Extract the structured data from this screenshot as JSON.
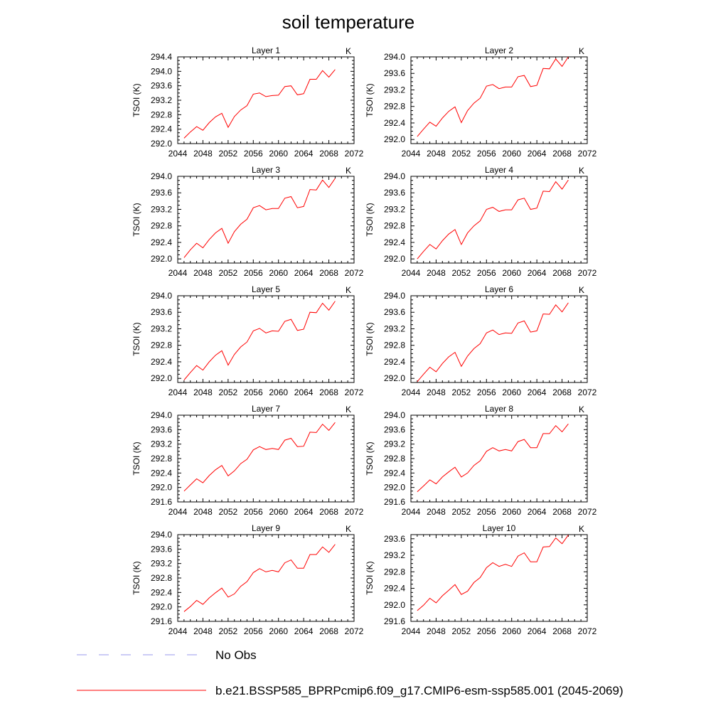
{
  "title": "soil temperature",
  "chart_data": {
    "type": "line",
    "x": [
      2045,
      2046,
      2047,
      2048,
      2049,
      2050,
      2051,
      2052,
      2053,
      2054,
      2055,
      2056,
      2057,
      2058,
      2059,
      2060,
      2061,
      2062,
      2063,
      2064,
      2065,
      2066,
      2067,
      2068,
      2069
    ],
    "xlim": [
      2044,
      2072
    ],
    "xticks": [
      2044,
      2048,
      2052,
      2056,
      2060,
      2064,
      2068,
      2072
    ],
    "ylabel": "TSOI  (K)",
    "units_label": "K",
    "grid": false,
    "panels": [
      {
        "title": "Layer 1",
        "ylim": [
          292.0,
          294.4
        ],
        "yticks": [
          "292.0",
          "292.4",
          "292.8",
          "293.2",
          "293.6",
          "294.0",
          "294.4"
        ],
        "series": [
          {
            "name": "b.e21.BSSP585_BPRPcmip6.f09_g17.CMIP6-esm-ssp585.001 (2045-2069)",
            "values": [
              292.15,
              292.32,
              292.47,
              292.37,
              292.58,
              292.74,
              292.84,
              292.45,
              292.75,
              292.93,
              293.05,
              293.37,
              293.4,
              293.3,
              293.33,
              293.34,
              293.58,
              293.6,
              293.35,
              293.38,
              293.78,
              293.78,
              294.02,
              293.84,
              294.05
            ]
          }
        ]
      },
      {
        "title": "Layer 2",
        "ylim": [
          291.9,
          294.0
        ],
        "yticks": [
          "292.0",
          "292.4",
          "292.8",
          "293.2",
          "293.6",
          "294.0"
        ],
        "series": [
          {
            "name": "b.e21.BSSP585_BPRPcmip6.f09_g17.CMIP6-esm-ssp585.001 (2045-2069)",
            "values": [
              292.07,
              292.25,
              292.42,
              292.32,
              292.52,
              292.68,
              292.79,
              292.41,
              292.7,
              292.88,
              293.0,
              293.29,
              293.33,
              293.23,
              293.27,
              293.27,
              293.52,
              293.55,
              293.28,
              293.31,
              293.72,
              293.71,
              293.95,
              293.77,
              294.0
            ]
          }
        ]
      },
      {
        "title": "Layer 3",
        "ylim": [
          291.9,
          294.0
        ],
        "yticks": [
          "292.0",
          "292.4",
          "292.8",
          "293.2",
          "293.6",
          "294.0"
        ],
        "series": [
          {
            "name": "b.e21.BSSP585_BPRPcmip6.f09_g17.CMIP6-esm-ssp585.001 (2045-2069)",
            "values": [
              292.03,
              292.22,
              292.38,
              292.27,
              292.47,
              292.63,
              292.74,
              292.38,
              292.66,
              292.84,
              292.96,
              293.24,
              293.29,
              293.19,
              293.22,
              293.22,
              293.47,
              293.51,
              293.24,
              293.27,
              293.68,
              293.67,
              293.91,
              293.73,
              293.95
            ]
          }
        ]
      },
      {
        "title": "Layer 4",
        "ylim": [
          291.9,
          294.0
        ],
        "yticks": [
          "292.0",
          "292.4",
          "292.8",
          "293.2",
          "293.6",
          "294.0"
        ],
        "series": [
          {
            "name": "b.e21.BSSP585_BPRPcmip6.f09_g17.CMIP6-esm-ssp585.001 (2045-2069)",
            "values": [
              292.0,
              292.18,
              292.35,
              292.24,
              292.44,
              292.6,
              292.71,
              292.35,
              292.63,
              292.8,
              292.92,
              293.2,
              293.25,
              293.15,
              293.19,
              293.19,
              293.43,
              293.47,
              293.2,
              293.23,
              293.64,
              293.63,
              293.87,
              293.69,
              293.91
            ]
          }
        ]
      },
      {
        "title": "Layer 5",
        "ylim": [
          291.9,
          294.0
        ],
        "yticks": [
          "292.0",
          "292.4",
          "292.8",
          "293.2",
          "293.6",
          "294.0"
        ],
        "series": [
          {
            "name": "b.e21.BSSP585_BPRPcmip6.f09_g17.CMIP6-esm-ssp585.001 (2045-2069)",
            "values": [
              291.96,
              292.14,
              292.31,
              292.2,
              292.4,
              292.56,
              292.67,
              292.32,
              292.58,
              292.76,
              292.88,
              293.15,
              293.21,
              293.1,
              293.15,
              293.14,
              293.38,
              293.43,
              293.16,
              293.19,
              293.6,
              293.59,
              293.82,
              293.65,
              293.87
            ]
          }
        ]
      },
      {
        "title": "Layer 6",
        "ylim": [
          291.9,
          294.0
        ],
        "yticks": [
          "292.0",
          "292.4",
          "292.8",
          "293.2",
          "293.6",
          "294.0"
        ],
        "series": [
          {
            "name": "b.e21.BSSP585_BPRPcmip6.f09_g17.CMIP6-esm-ssp585.001 (2045-2069)",
            "values": [
              291.92,
              292.1,
              292.27,
              292.16,
              292.36,
              292.52,
              292.63,
              292.29,
              292.54,
              292.72,
              292.84,
              293.1,
              293.17,
              293.06,
              293.1,
              293.09,
              293.34,
              293.39,
              293.12,
              293.15,
              293.56,
              293.55,
              293.78,
              293.61,
              293.83
            ]
          }
        ]
      },
      {
        "title": "Layer 7",
        "ylim": [
          291.6,
          294.0
        ],
        "yticks": [
          "291.6",
          "292.0",
          "292.4",
          "292.8",
          "293.2",
          "293.6",
          "294.0"
        ],
        "series": [
          {
            "name": "b.e21.BSSP585_BPRPcmip6.f09_g17.CMIP6-esm-ssp585.001 (2045-2069)",
            "values": [
              291.9,
              292.07,
              292.24,
              292.13,
              292.33,
              292.49,
              292.61,
              292.32,
              292.46,
              292.66,
              292.78,
              293.04,
              293.13,
              293.05,
              293.08,
              293.05,
              293.31,
              293.36,
              293.13,
              293.14,
              293.53,
              293.52,
              293.75,
              293.58,
              293.8
            ]
          }
        ]
      },
      {
        "title": "Layer 8",
        "ylim": [
          291.6,
          294.0
        ],
        "yticks": [
          "291.6",
          "292.0",
          "292.4",
          "292.8",
          "293.2",
          "293.6",
          "294.0"
        ],
        "series": [
          {
            "name": "b.e21.BSSP585_BPRPcmip6.f09_g17.CMIP6-esm-ssp585.001 (2045-2069)",
            "values": [
              291.88,
              292.04,
              292.21,
              292.1,
              292.29,
              292.43,
              292.56,
              292.29,
              292.4,
              292.61,
              292.74,
              293.0,
              293.1,
              293.01,
              293.05,
              293.01,
              293.27,
              293.33,
              293.1,
              293.1,
              293.49,
              293.49,
              293.71,
              293.54,
              293.76
            ]
          }
        ]
      },
      {
        "title": "Layer 9",
        "ylim": [
          291.6,
          294.0
        ],
        "yticks": [
          "291.6",
          "292.0",
          "292.4",
          "292.8",
          "293.2",
          "293.6",
          "294.0"
        ],
        "series": [
          {
            "name": "b.e21.BSSP585_BPRPcmip6.f09_g17.CMIP6-esm-ssp585.001 (2045-2069)",
            "values": [
              291.87,
              292.01,
              292.18,
              292.07,
              292.25,
              292.39,
              292.52,
              292.27,
              292.36,
              292.57,
              292.7,
              292.95,
              293.06,
              292.97,
              293.01,
              292.97,
              293.22,
              293.3,
              293.07,
              293.07,
              293.45,
              293.45,
              293.66,
              293.51,
              293.73
            ]
          }
        ]
      },
      {
        "title": "Layer 10",
        "ylim": [
          291.6,
          293.7
        ],
        "yticks": [
          "291.6",
          "292.0",
          "292.4",
          "292.8",
          "293.2",
          "293.6"
        ],
        "series": [
          {
            "name": "b.e21.BSSP585_BPRPcmip6.f09_g17.CMIP6-esm-ssp585.001 (2045-2069)",
            "values": [
              291.86,
              291.99,
              292.16,
              292.05,
              292.22,
              292.35,
              292.49,
              292.25,
              292.33,
              292.54,
              292.66,
              292.9,
              293.02,
              292.93,
              292.98,
              292.93,
              293.18,
              293.26,
              293.04,
              293.04,
              293.4,
              293.41,
              293.62,
              293.48,
              293.69
            ]
          }
        ]
      }
    ],
    "legend": {
      "placement": "bottom",
      "entries": [
        {
          "label": "No Obs",
          "color": "#9999ee",
          "dashed": true
        },
        {
          "label": "b.e21.BSSP585_BPRPcmip6.f09_g17.CMIP6-esm-ssp585.001 (2045-2069)",
          "color": "#ff0000",
          "dashed": false
        }
      ]
    },
    "colors": {
      "model_line": "#ff0000",
      "obs_line": "#9999ee",
      "axis": "#000000"
    }
  }
}
